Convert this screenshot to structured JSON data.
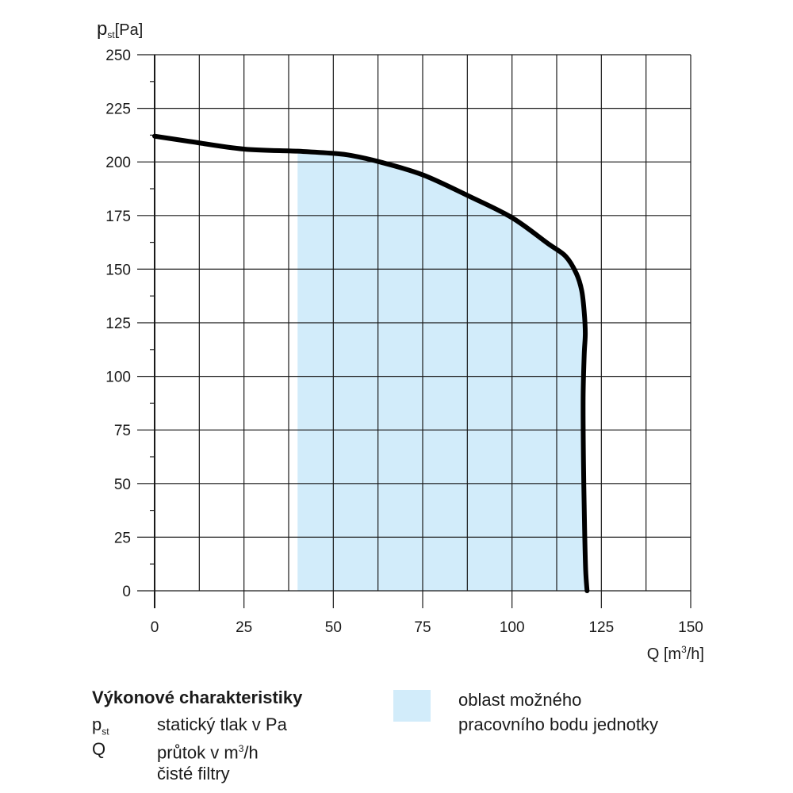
{
  "chart_data": {
    "type": "line",
    "y_axis_label": {
      "main": "p",
      "sub": "st",
      "unit": "[Pa]"
    },
    "x_axis_label": {
      "main": "Q [m",
      "sup": "3",
      "tail": "/h]"
    },
    "xlim": [
      0,
      150
    ],
    "ylim": [
      0,
      250
    ],
    "x_ticks": [
      0,
      25,
      50,
      75,
      100,
      125,
      150
    ],
    "y_ticks": [
      0,
      25,
      50,
      75,
      100,
      125,
      150,
      175,
      200,
      225,
      250
    ],
    "x_grid_step": 12.5,
    "y_grid_step": 25,
    "minor_y_tick_step": 12.5,
    "grid": true,
    "series": [
      {
        "x": [
          0,
          10,
          25,
          40,
          50,
          55,
          63,
          75,
          88,
          100,
          110,
          115,
          118,
          119.5,
          120.2,
          120.5,
          120.2,
          119.9,
          120,
          120.3,
          120.6,
          121
        ],
        "y": [
          212,
          209.5,
          206,
          205,
          204,
          203,
          200,
          194,
          184,
          174,
          162,
          156,
          148,
          140,
          130,
          120,
          110,
          90,
          60,
          30,
          10,
          0
        ],
        "color": "#000000"
      }
    ],
    "operating_area": {
      "x_from": 40,
      "upper_x": [
        40,
        50,
        55,
        63,
        75,
        88,
        100,
        110,
        115,
        118,
        119.5,
        120.2,
        120.5,
        120.2,
        119.9,
        120,
        120.3,
        120.6,
        121
      ],
      "upper_y": [
        205,
        204,
        203,
        200,
        194,
        184,
        174,
        162,
        156,
        148,
        140,
        130,
        120,
        110,
        90,
        60,
        30,
        10,
        0
      ],
      "color": "#d2ecfa"
    }
  },
  "legend": {
    "title": "Výkonové charakteristiky",
    "rows": [
      {
        "symbol": "p",
        "symbol_sub": "st",
        "description": "statický tlak v Pa"
      },
      {
        "symbol": "Q",
        "description_main": "průtok v m",
        "description_sup": "3",
        "description_tail": "/h"
      },
      {
        "description": "čisté filtry"
      }
    ],
    "area_label_line1": "oblast možného",
    "area_label_line2": "pracovního bodu jednotky",
    "area_color": "#d2ecfa"
  }
}
